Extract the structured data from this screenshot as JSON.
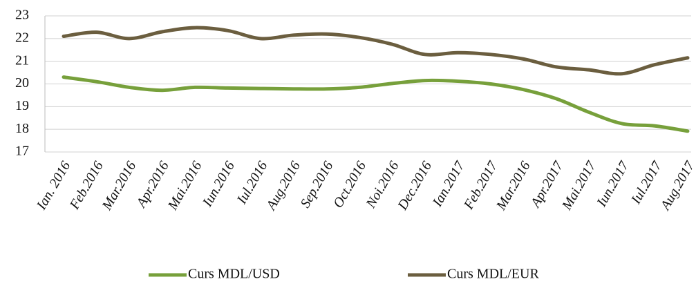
{
  "chart_data": {
    "type": "line",
    "categories": [
      "Ian. 2016",
      "Feb.2016",
      "Mar.2016",
      "Apr.2016",
      "Mai.2016",
      "Iun.2016",
      "Iul.2016",
      "Aug.2016",
      "Sep.2016",
      "Oct.2016",
      "Noi.2016",
      "Dec.2016",
      "Ian.2017",
      "Feb.2017",
      "Mar.2016",
      "Apr.2017",
      "Mai.2017",
      "Iun.2017",
      "Iul.2017",
      "Aug.2017"
    ],
    "series": [
      {
        "name": "Curs MDL/USD",
        "color": "#77a03b",
        "values": [
          20.3,
          20.1,
          19.85,
          19.72,
          19.85,
          19.82,
          19.8,
          19.78,
          19.78,
          19.85,
          20.02,
          20.15,
          20.12,
          20.0,
          19.75,
          19.35,
          18.75,
          18.25,
          18.15,
          17.92
        ]
      },
      {
        "name": "Curs MDL/EUR",
        "color": "#6b5e3f",
        "values": [
          22.1,
          22.28,
          22.0,
          22.3,
          22.48,
          22.35,
          22.0,
          22.15,
          22.2,
          22.05,
          21.75,
          21.3,
          21.38,
          21.3,
          21.1,
          20.75,
          20.62,
          20.45,
          20.85,
          21.15
        ]
      }
    ],
    "ylim": [
      17,
      23
    ],
    "yticks": [
      17,
      18,
      19,
      20,
      21,
      22,
      23
    ],
    "grid": true,
    "legend": "bottom"
  }
}
